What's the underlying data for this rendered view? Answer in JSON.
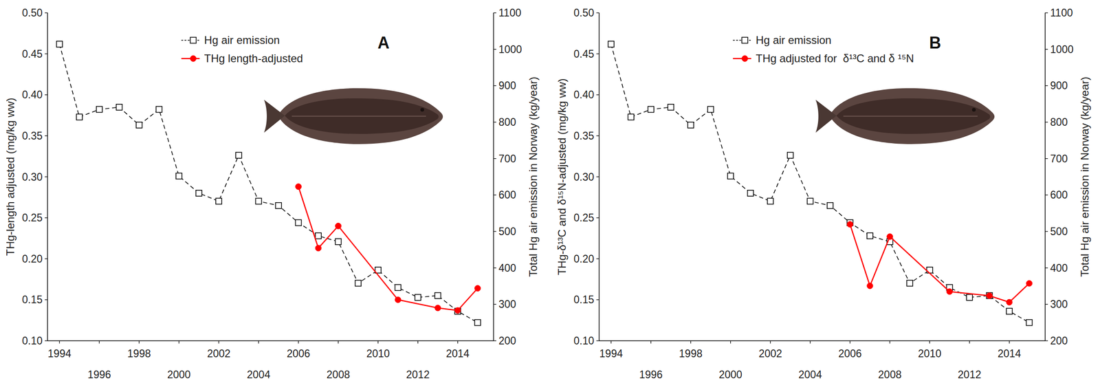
{
  "chart_data": [
    {
      "type": "line",
      "title": "A",
      "y_label": "THg-length adjusted (mg/kg ww)",
      "y2_label": "Total Hg air emission in Norway (kg/year)",
      "xlim": [
        1993.4,
        2015.8
      ],
      "xticks": [
        1994,
        1996,
        1998,
        2000,
        2002,
        2004,
        2006,
        2008,
        2010,
        2012,
        2014
      ],
      "ylim": [
        0.1,
        0.5
      ],
      "yticks": [
        {
          "value": 0.1,
          "label": "0.10"
        },
        {
          "value": 0.15,
          "label": "0.15"
        },
        {
          "value": 0.2,
          "label": "0.20"
        },
        {
          "value": 0.25,
          "label": "0.25"
        },
        {
          "value": 0.3,
          "label": "0.30"
        },
        {
          "value": 0.35,
          "label": "0.35"
        },
        {
          "value": 0.4,
          "label": "0.40"
        },
        {
          "value": 0.45,
          "label": "0.45"
        },
        {
          "value": 0.5,
          "label": "0.50"
        }
      ],
      "y2lim": [
        200,
        1100
      ],
      "y2ticks": [
        200,
        300,
        400,
        500,
        600,
        700,
        800,
        900,
        1000,
        1100
      ],
      "grid": false,
      "legend": "top",
      "series": [
        {
          "name": "Hg air emission",
          "color": "#000000",
          "marker": "square",
          "line_style": "dashed",
          "axis": "y2",
          "x": [
            1994,
            1995,
            1996,
            1997,
            1998,
            1999,
            2000,
            2001,
            2002,
            2003,
            2004,
            2005,
            2006,
            2007,
            2008,
            2009,
            2010,
            2011,
            2012,
            2013,
            2014,
            2015
          ],
          "values": [
            1014,
            814,
            835,
            841,
            792,
            835,
            652,
            605,
            583,
            709,
            583,
            571,
            524,
            488,
            472,
            358,
            394,
            346,
            319,
            324,
            281,
            250
          ]
        },
        {
          "name": "THg length-adjusted",
          "color": "#ff0000",
          "marker": "circle",
          "line_style": "solid",
          "x": [
            2006,
            2007,
            2008,
            2011,
            2013,
            2014,
            2015
          ],
          "values": [
            0.288,
            0.213,
            0.24,
            0.15,
            0.14,
            0.137,
            0.164
          ]
        }
      ]
    },
    {
      "type": "line",
      "title": "B",
      "y_label": "THg-δ¹³C and δ¹⁵N-adjusted (mg/kg ww)",
      "y2_label": "Total Hg air emission in Norway (kg/year)",
      "xlim": [
        1993.4,
        2015.8
      ],
      "xticks": [
        1994,
        1996,
        1998,
        2000,
        2002,
        2004,
        2006,
        2008,
        2010,
        2012,
        2014
      ],
      "ylim": [
        0.1,
        0.5
      ],
      "yticks": [
        {
          "value": 0.1,
          "label": "0.10"
        },
        {
          "value": 0.15,
          "label": "0.15"
        },
        {
          "value": 0.2,
          "label": "0.20"
        },
        {
          "value": 0.25,
          "label": "0.25"
        },
        {
          "value": 0.3,
          "label": "0.30"
        },
        {
          "value": 0.35,
          "label": "0.35"
        },
        {
          "value": 0.4,
          "label": "0.40"
        },
        {
          "value": 0.45,
          "label": "0.45"
        },
        {
          "value": 0.5,
          "label": "0.50"
        }
      ],
      "y2lim": [
        200,
        1100
      ],
      "y2ticks": [
        200,
        300,
        400,
        500,
        600,
        700,
        800,
        900,
        1000,
        1100
      ],
      "grid": false,
      "legend": "top",
      "series": [
        {
          "name": "Hg air emission",
          "color": "#000000",
          "marker": "square",
          "line_style": "dashed",
          "axis": "y2",
          "x": [
            1994,
            1995,
            1996,
            1997,
            1998,
            1999,
            2000,
            2001,
            2002,
            2003,
            2004,
            2005,
            2006,
            2007,
            2008,
            2009,
            2010,
            2011,
            2012,
            2013,
            2014,
            2015
          ],
          "values": [
            1014,
            814,
            835,
            841,
            792,
            835,
            652,
            605,
            583,
            709,
            583,
            571,
            524,
            488,
            472,
            358,
            394,
            346,
            319,
            324,
            281,
            250
          ]
        },
        {
          "name": "THg adjusted for  δ¹³C and δ ¹⁵N",
          "color": "#ff0000",
          "marker": "circle",
          "line_style": "solid",
          "x": [
            2006,
            2007,
            2008,
            2011,
            2013,
            2014,
            2015
          ],
          "values": [
            0.242,
            0.167,
            0.227,
            0.16,
            0.155,
            0.147,
            0.17
          ]
        }
      ]
    }
  ]
}
